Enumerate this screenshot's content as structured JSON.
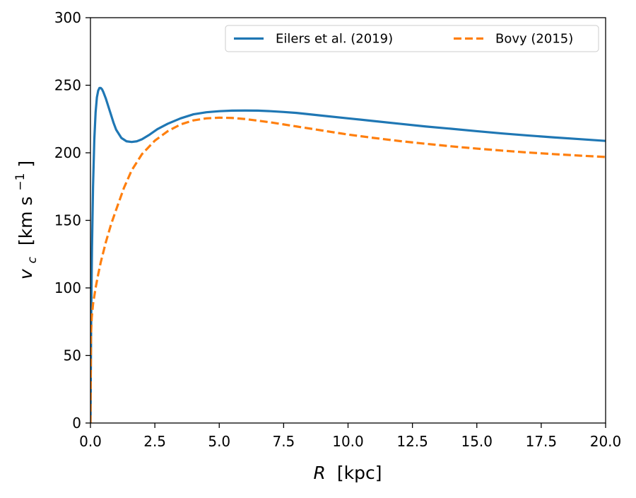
{
  "chart_data": {
    "type": "line",
    "xlabel": "R",
    "xlabel_unit": "[kpc]",
    "ylabel_symbol": "v",
    "ylabel_subscript": "c",
    "ylabel_unit_pre": "[km s",
    "ylabel_unit_exp": "−1",
    "ylabel_unit_post": "]",
    "xlim": [
      0,
      20
    ],
    "ylim": [
      0,
      300
    ],
    "xticks": [
      0,
      2.5,
      5,
      7.5,
      10,
      12.5,
      15,
      17.5,
      20
    ],
    "xtick_labels": [
      "0.0",
      "2.5",
      "5.0",
      "7.5",
      "10.0",
      "12.5",
      "15.0",
      "17.5",
      "20.0"
    ],
    "yticks": [
      0,
      50,
      100,
      150,
      200,
      250,
      300
    ],
    "ytick_labels": [
      "0",
      "50",
      "100",
      "150",
      "200",
      "250",
      "300"
    ],
    "grid": false,
    "legend_placement": "top-right",
    "series": [
      {
        "name": "Eilers et al. (2019)",
        "color": "#1f77b4",
        "style": "solid",
        "x": [
          0,
          0.03,
          0.06,
          0.1,
          0.15,
          0.2,
          0.25,
          0.3,
          0.35,
          0.4,
          0.45,
          0.5,
          0.6,
          0.7,
          0.8,
          0.9,
          1.0,
          1.2,
          1.4,
          1.6,
          1.8,
          2.0,
          2.3,
          2.6,
          3.0,
          3.5,
          4.0,
          4.5,
          5.0,
          5.5,
          6.0,
          6.5,
          7.0,
          7.5,
          8.0,
          9.0,
          10.0,
          11.0,
          12.0,
          13.0,
          14.0,
          15.0,
          16.0,
          17.0,
          18.0,
          19.0,
          20.0
        ],
        "y": [
          0,
          80,
          130,
          175,
          210,
          230,
          241,
          246,
          248,
          248,
          247,
          245,
          240,
          234,
          228,
          222,
          217,
          211,
          208.5,
          208,
          208.5,
          210,
          213.5,
          217.5,
          221.5,
          225.5,
          228.5,
          230,
          230.8,
          231.2,
          231.3,
          231.2,
          230.8,
          230.2,
          229.5,
          227.5,
          225.5,
          223.5,
          221.5,
          219.5,
          217.8,
          216,
          214.3,
          212.8,
          211.4,
          210.1,
          208.8
        ]
      },
      {
        "name": "Bovy (2015)",
        "color": "#ff7f0e",
        "style": "dashed",
        "x": [
          0,
          0.02,
          0.05,
          0.1,
          0.2,
          0.3,
          0.4,
          0.6,
          0.8,
          1.0,
          1.3,
          1.6,
          2.0,
          2.5,
          3.0,
          3.5,
          4.0,
          4.5,
          5.0,
          5.5,
          6.0,
          6.5,
          7.0,
          7.5,
          8.0,
          9.0,
          10.0,
          11.0,
          12.0,
          13.0,
          14.0,
          15.0,
          16.0,
          17.0,
          18.0,
          19.0,
          20.0
        ],
        "y": [
          0,
          65,
          78,
          88,
          100,
          110,
          119,
          134,
          147,
          158,
          174,
          187,
          199,
          209,
          216,
          221,
          224,
          225.5,
          226,
          225.8,
          225,
          223.8,
          222.5,
          221,
          219.5,
          216.5,
          213.5,
          211,
          208.7,
          206.7,
          204.8,
          203.1,
          201.6,
          200.2,
          199,
          197.9,
          196.9
        ]
      }
    ]
  }
}
